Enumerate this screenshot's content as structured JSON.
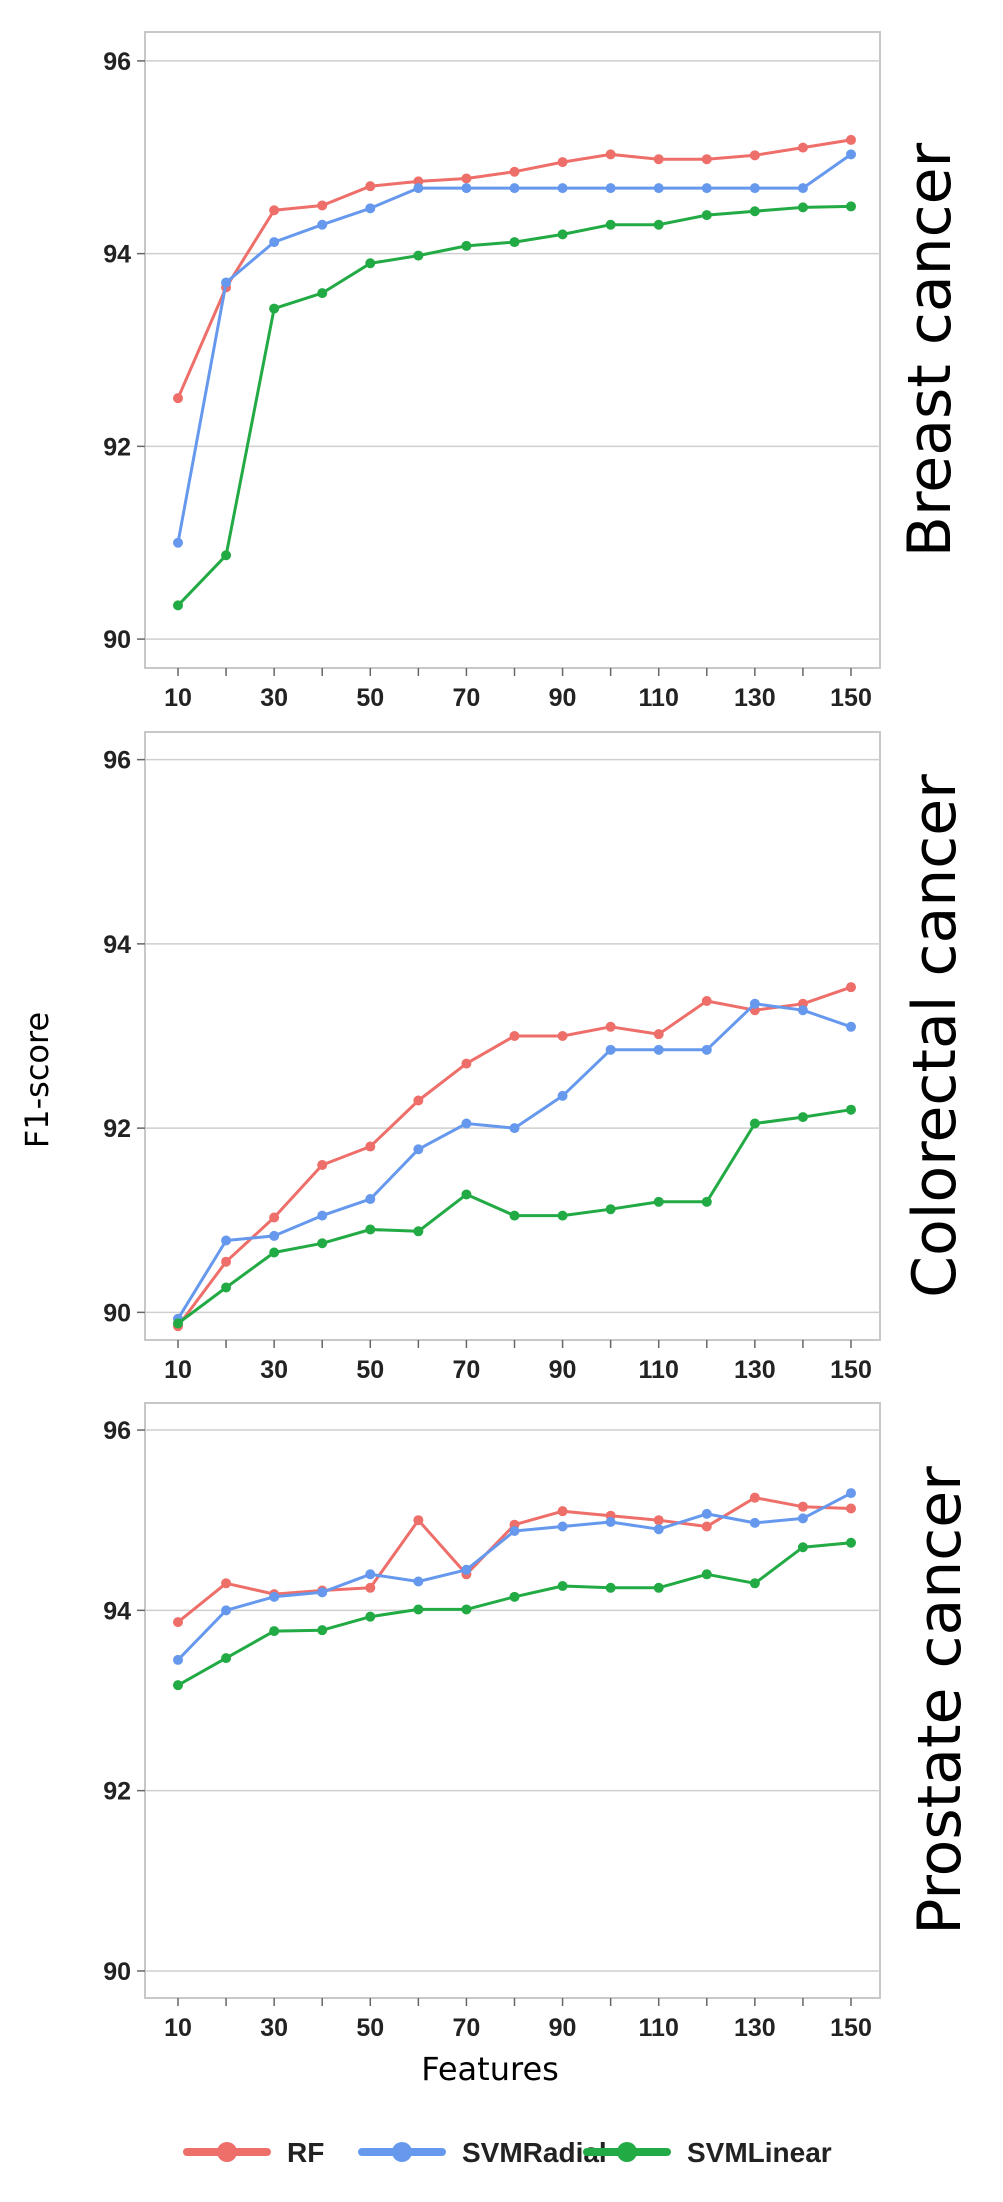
{
  "chart_data": {
    "type": "line",
    "ylabel": "F1-score",
    "xlabel": "Features",
    "x": [
      10,
      20,
      30,
      40,
      50,
      60,
      70,
      80,
      90,
      100,
      110,
      120,
      130,
      140,
      150
    ],
    "x_ticks": [
      10,
      30,
      50,
      70,
      90,
      110,
      130,
      150
    ],
    "y_ticks": [
      90,
      92,
      94,
      96
    ],
    "ylim": [
      89.7,
      96.3
    ],
    "grid": true,
    "legend_position": "bottom",
    "legend": [
      {
        "name": "RF",
        "color": "#EE6E6A"
      },
      {
        "name": "SVMRadial",
        "color": "#6699EE"
      },
      {
        "name": "SVMLinear",
        "color": "#22AA44"
      }
    ],
    "panels": [
      {
        "title": "Breast cancer",
        "series": [
          {
            "name": "RF",
            "color": "#EE6E6A",
            "values": [
              92.5,
              93.65,
              94.45,
              94.5,
              94.7,
              94.75,
              94.78,
              94.85,
              94.95,
              95.03,
              94.98,
              94.98,
              95.02,
              95.1,
              95.18
            ]
          },
          {
            "name": "SVMRadial",
            "color": "#6699EE",
            "values": [
              91.0,
              93.7,
              94.12,
              94.3,
              94.47,
              94.68,
              94.68,
              94.68,
              94.68,
              94.68,
              94.68,
              94.68,
              94.68,
              94.68,
              95.03
            ]
          },
          {
            "name": "SVMLinear",
            "color": "#22AA44",
            "values": [
              90.35,
              90.87,
              93.43,
              93.59,
              93.9,
              93.98,
              94.08,
              94.12,
              94.2,
              94.3,
              94.3,
              94.4,
              94.44,
              94.48,
              94.49
            ]
          }
        ]
      },
      {
        "title": "Colorectal cancer",
        "series": [
          {
            "name": "RF",
            "color": "#EE6E6A",
            "values": [
              89.85,
              90.55,
              91.03,
              91.6,
              91.8,
              92.3,
              92.7,
              93.0,
              93.0,
              93.1,
              93.02,
              93.38,
              93.28,
              93.35,
              93.53
            ]
          },
          {
            "name": "SVMRadial",
            "color": "#6699EE",
            "values": [
              89.93,
              90.78,
              90.83,
              91.05,
              91.23,
              91.77,
              92.05,
              92.0,
              92.35,
              92.85,
              92.85,
              92.85,
              93.35,
              93.28,
              93.1
            ]
          },
          {
            "name": "SVMLinear",
            "color": "#22AA44",
            "values": [
              89.88,
              90.27,
              90.65,
              90.75,
              90.9,
              90.88,
              91.28,
              91.05,
              91.05,
              91.12,
              91.2,
              91.2,
              92.05,
              92.12,
              92.2
            ]
          }
        ]
      },
      {
        "title": "Prostate cancer",
        "series": [
          {
            "name": "RF",
            "color": "#EE6E6A",
            "values": [
              93.87,
              94.3,
              94.18,
              94.22,
              94.25,
              95.0,
              94.4,
              94.95,
              95.1,
              95.05,
              95.0,
              94.93,
              95.25,
              95.15,
              95.13
            ]
          },
          {
            "name": "SVMRadial",
            "color": "#6699EE",
            "values": [
              93.45,
              94.0,
              94.15,
              94.2,
              94.4,
              94.32,
              94.45,
              94.88,
              94.93,
              94.98,
              94.9,
              95.07,
              94.97,
              95.02,
              95.3
            ]
          },
          {
            "name": "SVMLinear",
            "color": "#22AA44",
            "values": [
              93.17,
              93.47,
              93.77,
              93.78,
              93.93,
              94.01,
              94.01,
              94.15,
              94.27,
              94.25,
              94.25,
              94.4,
              94.3,
              94.7,
              94.75
            ]
          }
        ]
      }
    ]
  }
}
